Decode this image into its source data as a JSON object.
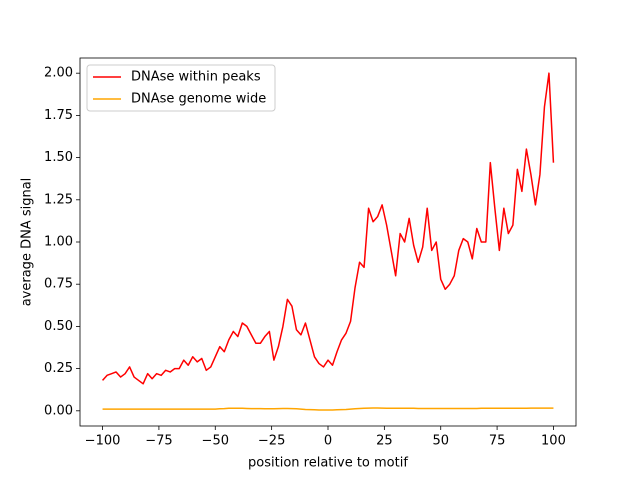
{
  "chart_data": {
    "type": "line",
    "xlabel": "position relative to motif",
    "ylabel": "average DNA signal",
    "x": [
      -100,
      -98,
      -96,
      -94,
      -92,
      -90,
      -88,
      -86,
      -84,
      -82,
      -80,
      -78,
      -76,
      -74,
      -72,
      -70,
      -68,
      -66,
      -64,
      -62,
      -60,
      -58,
      -56,
      -54,
      -52,
      -50,
      -48,
      -46,
      -44,
      -42,
      -40,
      -38,
      -36,
      -34,
      -32,
      -30,
      -28,
      -26,
      -24,
      -22,
      -20,
      -18,
      -16,
      -14,
      -12,
      -10,
      -8,
      -6,
      -4,
      -2,
      0,
      2,
      4,
      6,
      8,
      10,
      12,
      14,
      16,
      18,
      20,
      22,
      24,
      26,
      28,
      30,
      32,
      34,
      36,
      38,
      40,
      42,
      44,
      46,
      48,
      50,
      52,
      54,
      56,
      58,
      60,
      62,
      64,
      66,
      68,
      70,
      72,
      74,
      76,
      78,
      80,
      82,
      84,
      86,
      88,
      90,
      92,
      94,
      96,
      98,
      100
    ],
    "series": [
      {
        "name": "DNAse within peaks",
        "color": "#ff0000",
        "values": [
          0.18,
          0.21,
          0.22,
          0.23,
          0.2,
          0.22,
          0.26,
          0.2,
          0.18,
          0.16,
          0.22,
          0.19,
          0.22,
          0.21,
          0.24,
          0.23,
          0.25,
          0.25,
          0.3,
          0.27,
          0.32,
          0.29,
          0.31,
          0.24,
          0.26,
          0.32,
          0.38,
          0.35,
          0.42,
          0.47,
          0.44,
          0.52,
          0.5,
          0.45,
          0.4,
          0.4,
          0.44,
          0.47,
          0.3,
          0.38,
          0.5,
          0.66,
          0.62,
          0.48,
          0.45,
          0.52,
          0.42,
          0.32,
          0.28,
          0.26,
          0.3,
          0.27,
          0.35,
          0.42,
          0.46,
          0.53,
          0.73,
          0.88,
          0.85,
          1.2,
          1.12,
          1.15,
          1.22,
          1.1,
          0.95,
          0.8,
          1.05,
          1.0,
          1.14,
          0.98,
          0.88,
          0.97,
          1.2,
          0.95,
          1.0,
          0.78,
          0.72,
          0.75,
          0.8,
          0.95,
          1.02,
          1.0,
          0.9,
          1.08,
          1.0,
          1.0,
          1.47,
          1.2,
          0.95,
          1.2,
          1.05,
          1.1,
          1.43,
          1.3,
          1.55,
          1.4,
          1.22,
          1.4,
          1.8,
          2.0,
          1.47
        ]
      },
      {
        "name": "DNAse genome wide",
        "color": "#ffa500",
        "values": [
          0.01,
          0.01,
          0.01,
          0.01,
          0.01,
          0.01,
          0.01,
          0.01,
          0.01,
          0.01,
          0.01,
          0.01,
          0.01,
          0.01,
          0.01,
          0.01,
          0.01,
          0.01,
          0.01,
          0.01,
          0.01,
          0.01,
          0.01,
          0.01,
          0.01,
          0.01,
          0.012,
          0.013,
          0.015,
          0.015,
          0.015,
          0.015,
          0.014,
          0.013,
          0.013,
          0.013,
          0.012,
          0.012,
          0.012,
          0.013,
          0.014,
          0.014,
          0.013,
          0.012,
          0.01,
          0.008,
          0.007,
          0.006,
          0.005,
          0.005,
          0.005,
          0.005,
          0.006,
          0.007,
          0.008,
          0.01,
          0.012,
          0.014,
          0.015,
          0.016,
          0.017,
          0.017,
          0.016,
          0.015,
          0.015,
          0.015,
          0.015,
          0.015,
          0.015,
          0.015,
          0.014,
          0.014,
          0.014,
          0.014,
          0.014,
          0.014,
          0.014,
          0.014,
          0.014,
          0.014,
          0.014,
          0.014,
          0.014,
          0.014,
          0.015,
          0.015,
          0.015,
          0.015,
          0.015,
          0.015,
          0.015,
          0.015,
          0.015,
          0.015,
          0.015,
          0.016,
          0.016,
          0.016,
          0.016,
          0.016,
          0.016
        ]
      }
    ],
    "xlim": [
      -110,
      110
    ],
    "ylim": [
      -0.09,
      2.09
    ],
    "xticks": [
      {
        "value": -100,
        "label": "−100"
      },
      {
        "value": -75,
        "label": "−75"
      },
      {
        "value": -50,
        "label": "−50"
      },
      {
        "value": -25,
        "label": "−25"
      },
      0,
      25,
      50,
      75,
      100
    ],
    "yticks": [
      {
        "value": 0,
        "label": "0.00"
      },
      {
        "value": 0.25,
        "label": "0.25"
      },
      {
        "value": 0.5,
        "label": "0.50"
      },
      {
        "value": 0.75,
        "label": "0.75"
      },
      {
        "value": 1,
        "label": "1.00"
      },
      {
        "value": 1.25,
        "label": "1.25"
      },
      {
        "value": 1.5,
        "label": "1.50"
      },
      {
        "value": 1.75,
        "label": "1.75"
      },
      {
        "value": 2,
        "label": "2.00"
      }
    ],
    "legend": "upper left"
  }
}
